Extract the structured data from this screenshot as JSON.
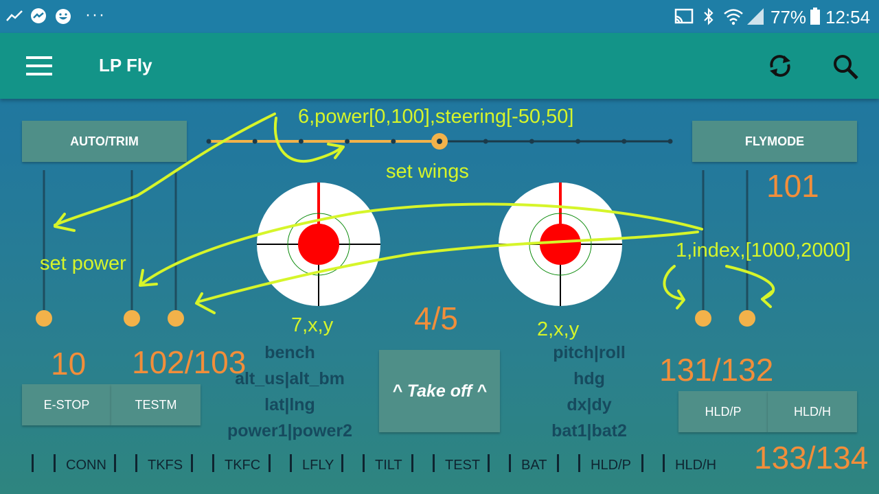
{
  "status_bar": {
    "battery_percent": "77%",
    "time": "12:54",
    "overflow_label": "···",
    "icons": [
      "activity-icon",
      "messenger-icon",
      "smiley-icon",
      "cast-icon",
      "bluetooth-icon",
      "wifi-icon",
      "signal-icon",
      "battery-icon"
    ]
  },
  "app_bar": {
    "title": "LP Fly",
    "icons": [
      "menu-icon",
      "sync-icon",
      "search-icon"
    ]
  },
  "buttons": {
    "auto_trim": "AUTO/TRIM",
    "flymode": "FLYMODE",
    "estop": "E-STOP",
    "testm": "TESTM",
    "takeoff": "^ Take off ^",
    "hld_p": "HLD/P",
    "hld_h": "HLD/H"
  },
  "slider": {
    "total_steps": 11,
    "current_step": 5
  },
  "channel_labels": {
    "ch101": "101",
    "ch10": "10",
    "ch102_103": "102/103",
    "ch4_5": "4/5",
    "ch131_132": "131/132",
    "ch133_134": "133/134"
  },
  "annotations": {
    "slider_hint": "6,power[0,100],steering[-50,50]",
    "set_wings": "set wings",
    "set_power": "set power",
    "index_hint": "1,index,[1000,2000]",
    "left_stick": "7,x,y",
    "right_stick": "2,x,y"
  },
  "telemetry_left": [
    "bench",
    "alt_us|alt_bm",
    "lat|lng",
    "power1|power2"
  ],
  "telemetry_right": [
    "pitch|roll",
    "hdg",
    "dx|dy",
    "bat1|bat2"
  ],
  "tabs": [
    "",
    "CONN",
    "TKFS",
    "TKFC",
    "LFLY",
    "TILT",
    "TEST",
    "BAT",
    "HLD/P",
    "HLD/H"
  ],
  "colors": {
    "status_bar": "#1e7ea6",
    "app_bar": "#139488",
    "button": "#4f8f88",
    "accent_orange": "#f2b24a",
    "channel_orange": "#f28e3a",
    "annotation_lime": "#d6f52a",
    "stick_red": "#ff0000"
  }
}
